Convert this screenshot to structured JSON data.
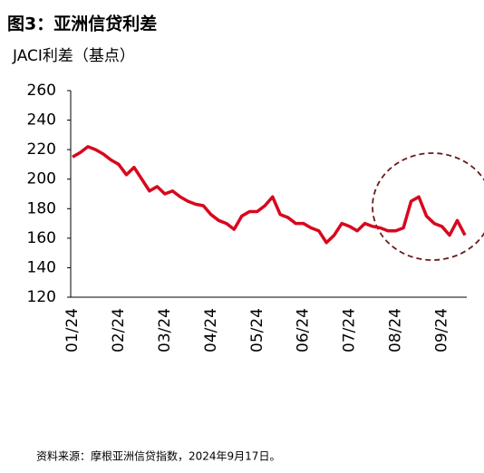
{
  "chart_data": {
    "type": "line",
    "title": "图3：亚洲信贷利差",
    "y_label": "JACI利差（基点）",
    "source": "资料来源：摩根亚洲信贷指数，2024年9月17日。",
    "categories": [
      "01/24",
      null,
      null,
      null,
      null,
      null,
      "02/24",
      null,
      null,
      null,
      null,
      null,
      "03/24",
      null,
      null,
      null,
      null,
      null,
      "04/24",
      null,
      null,
      null,
      null,
      null,
      "05/24",
      null,
      null,
      null,
      null,
      null,
      "06/24",
      null,
      null,
      null,
      null,
      null,
      "07/24",
      null,
      null,
      null,
      null,
      null,
      "08/24",
      null,
      null,
      null,
      null,
      null,
      "09/24",
      null,
      null,
      null
    ],
    "series": [
      {
        "name": "JACI",
        "color": "#d7081e",
        "values": [
          215,
          218,
          222,
          220,
          217,
          213,
          210,
          203,
          208,
          200,
          192,
          195,
          190,
          192,
          188,
          185,
          183,
          182,
          176,
          172,
          170,
          166,
          175,
          178,
          178,
          182,
          188,
          176,
          174,
          170,
          170,
          167,
          165,
          157,
          162,
          170,
          168,
          165,
          170,
          168,
          167,
          165,
          165,
          167,
          185,
          188,
          175,
          170,
          168,
          162,
          172,
          162
        ]
      }
    ],
    "ylim": [
      120,
      260
    ],
    "yticks": [
      120,
      140,
      160,
      180,
      200,
      220,
      240,
      260
    ],
    "grid": false
  }
}
